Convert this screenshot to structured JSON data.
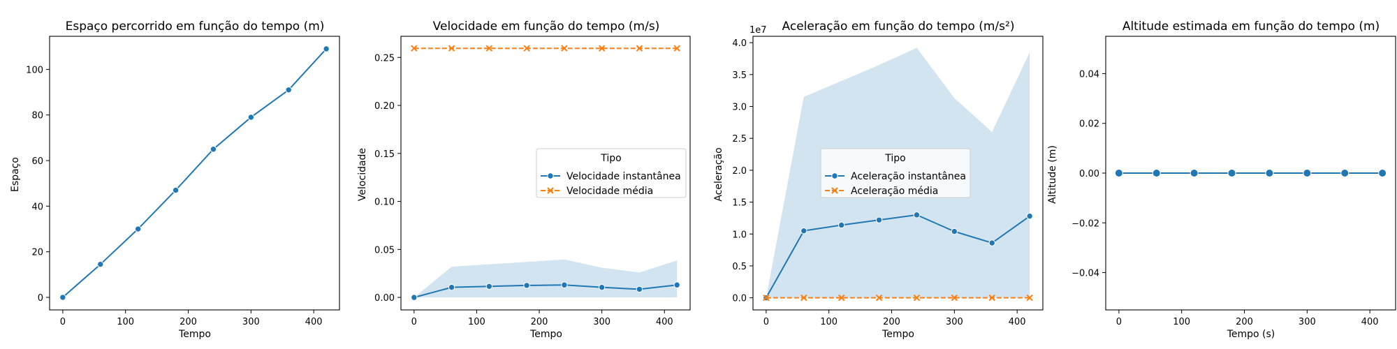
{
  "chart_data": [
    {
      "type": "line",
      "title": "Espaço percorrido em função do tempo (m)",
      "xlabel": "Tempo",
      "ylabel": "Espaço",
      "xlim": [
        -21,
        441
      ],
      "ylim": [
        -5.5,
        114.5
      ],
      "xticks": [
        0,
        100,
        200,
        300,
        400
      ],
      "yticks": [
        0,
        20,
        40,
        60,
        80,
        100
      ],
      "tick_labels_x": [
        "0",
        "100",
        "200",
        "300",
        "400"
      ],
      "tick_labels_y": [
        "0",
        "20",
        "40",
        "60",
        "80",
        "100"
      ],
      "x": [
        0,
        60,
        120,
        180,
        240,
        300,
        360,
        420
      ],
      "series": [
        {
          "values": [
            0,
            14.5,
            30,
            47,
            65,
            79,
            91,
            109
          ],
          "color": "#1f77b4",
          "marker": "circle"
        }
      ]
    },
    {
      "type": "line",
      "title": "Velocidade em função do tempo (m/s)",
      "xlabel": "Tempo",
      "ylabel": "Velocidade",
      "xlim": [
        -21,
        441
      ],
      "ylim": [
        -0.013,
        0.272
      ],
      "xticks": [
        0,
        100,
        200,
        300,
        400
      ],
      "yticks": [
        0,
        0.05,
        0.1,
        0.15,
        0.2,
        0.25
      ],
      "tick_labels_x": [
        "0",
        "100",
        "200",
        "300",
        "400"
      ],
      "tick_labels_y": [
        "0.00",
        "0.05",
        "0.10",
        "0.15",
        "0.20",
        "0.25"
      ],
      "x": [
        0,
        60,
        120,
        180,
        240,
        300,
        360,
        420
      ],
      "band": {
        "lower": [
          0,
          0,
          0,
          0,
          0,
          0,
          0,
          0
        ],
        "upper": [
          0,
          0.032,
          0.0345,
          0.037,
          0.0395,
          0.031,
          0.026,
          0.0385
        ],
        "color": "#1f77b4"
      },
      "legend": {
        "title": "Tipo",
        "position": "center-right"
      },
      "series": [
        {
          "name": "Velocidade instantânea",
          "values": [
            0,
            0.0105,
            0.0115,
            0.0125,
            0.013,
            0.0105,
            0.0085,
            0.013
          ],
          "color": "#1f77b4",
          "marker": "circle",
          "dash": "solid"
        },
        {
          "name": "Velocidade média",
          "values": [
            0.2595,
            0.2595,
            0.2595,
            0.2595,
            0.2595,
            0.2595,
            0.2595,
            0.2595
          ],
          "color": "#ff7f0e",
          "marker": "x",
          "dash": "dashed"
        }
      ]
    },
    {
      "type": "line",
      "title": "Aceleração em função do tempo (m/s²)",
      "xlabel": "Tempo",
      "ylabel": "Aceleração",
      "scale_label": "1e7",
      "xlim": [
        -21,
        441
      ],
      "ylim": [
        -0.19,
        4.1
      ],
      "xticks": [
        0,
        100,
        200,
        300,
        400
      ],
      "yticks": [
        0,
        0.5,
        1,
        1.5,
        2,
        2.5,
        3,
        3.5,
        4
      ],
      "tick_labels_x": [
        "0",
        "100",
        "200",
        "300",
        "400"
      ],
      "tick_labels_y": [
        "0.0",
        "0.5",
        "1.0",
        "1.5",
        "2.0",
        "2.5",
        "3.0",
        "3.5",
        "4.0"
      ],
      "x": [
        0,
        60,
        120,
        180,
        240,
        300,
        360,
        420
      ],
      "band": {
        "lower": [
          0,
          0,
          0,
          0,
          0,
          0,
          0,
          0
        ],
        "upper": [
          0,
          3.15,
          3.4,
          3.65,
          3.92,
          3.13,
          2.6,
          3.85
        ],
        "color": "#1f77b4"
      },
      "legend": {
        "title": "Tipo",
        "position": "center"
      },
      "series": [
        {
          "name": "Aceleração instantânea",
          "values": [
            0,
            1.05,
            1.14,
            1.22,
            1.3,
            1.04,
            0.86,
            1.28
          ],
          "color": "#1f77b4",
          "marker": "circle",
          "dash": "solid"
        },
        {
          "name": "Aceleração média",
          "values": [
            0,
            0,
            0,
            0,
            0,
            0,
            0,
            0
          ],
          "color": "#ff7f0e",
          "marker": "x",
          "dash": "dashed"
        }
      ]
    },
    {
      "type": "line",
      "title": "Altitude estimada em função do tempo (m)",
      "xlabel": "Tempo (s)",
      "ylabel": "Altitude (m)",
      "xlim": [
        -21,
        441
      ],
      "ylim": [
        -0.055,
        0.055
      ],
      "xticks": [
        0,
        100,
        200,
        300,
        400
      ],
      "yticks": [
        -0.04,
        -0.02,
        0,
        0.02,
        0.04
      ],
      "tick_labels_x": [
        "0",
        "100",
        "200",
        "300",
        "400"
      ],
      "tick_labels_y": [
        "−0.04",
        "−0.02",
        "0.00",
        "0.02",
        "0.04"
      ],
      "x": [
        0,
        60,
        120,
        180,
        240,
        300,
        360,
        420
      ],
      "series": [
        {
          "values": [
            0,
            0,
            0,
            0,
            0,
            0,
            0,
            0
          ],
          "color": "#1f77b4",
          "marker": "circle-large"
        }
      ]
    }
  ]
}
